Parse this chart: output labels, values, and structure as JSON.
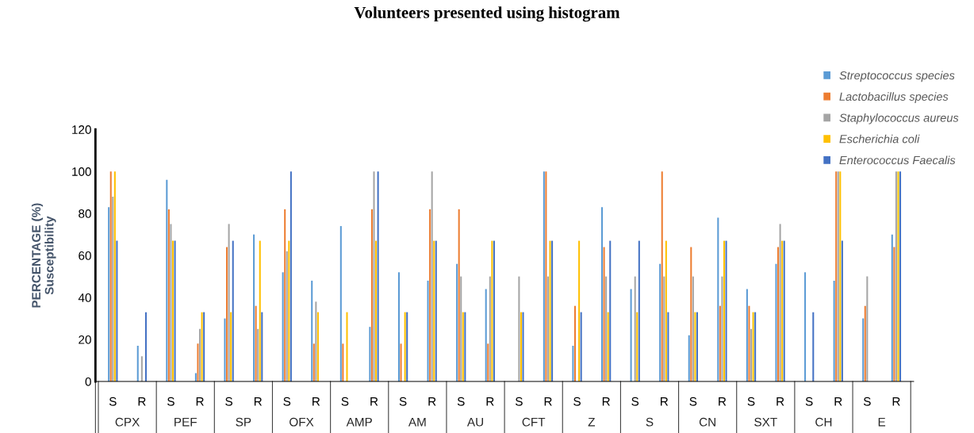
{
  "chart_data": {
    "type": "bar",
    "title": "Volunteers presented using histogram",
    "ylabel": "PERCENTAGE (%)\nSusceptibility",
    "categories": [
      "S",
      "R",
      "S",
      "R",
      "S",
      "R",
      "S",
      "R",
      "S",
      "R",
      "S",
      "R",
      "S",
      "R",
      "S",
      "R",
      "S",
      "R",
      "S",
      "R",
      "S",
      "R",
      "S",
      "R",
      "S",
      "R",
      "S",
      "R"
    ],
    "annotations": [
      "CPX",
      "PEF",
      "SP",
      "OFX",
      "AMP",
      "AM",
      "AU",
      "CFT",
      "Z",
      "S",
      "CN",
      "SXT",
      "CH",
      "E"
    ],
    "series": [
      {
        "name": "Streptococcus species",
        "color": "#5b9bd5",
        "values": [
          83,
          17,
          96,
          4,
          30,
          70,
          52,
          48,
          74,
          26,
          52,
          48,
          56,
          44,
          0,
          100,
          17,
          83,
          44,
          56,
          22,
          78,
          44,
          56,
          52,
          48,
          30,
          70
        ]
      },
      {
        "name": "Lactobacillus species",
        "color": "#ed7d31",
        "values": [
          100,
          0,
          82,
          18,
          64,
          36,
          82,
          18,
          18,
          82,
          18,
          82,
          82,
          18,
          0,
          100,
          36,
          64,
          0,
          100,
          64,
          36,
          36,
          64,
          0,
          100,
          36,
          64
        ]
      },
      {
        "name": "Staphylococcus aureus",
        "color": "#a5a5a5",
        "values": [
          88,
          12,
          75,
          25,
          75,
          25,
          62,
          38,
          0,
          100,
          0,
          100,
          50,
          50,
          50,
          50,
          0,
          50,
          50,
          50,
          50,
          50,
          25,
          75,
          0,
          100,
          50,
          100
        ]
      },
      {
        "name": "Escherichia coli",
        "color": "#ffc000",
        "values": [
          100,
          0,
          67,
          33,
          33,
          67,
          67,
          33,
          33,
          67,
          33,
          67,
          33,
          67,
          33,
          67,
          67,
          33,
          33,
          67,
          33,
          67,
          33,
          67,
          0,
          100,
          0,
          100
        ]
      },
      {
        "name": "Enterococcus Faecalis",
        "color": "#4472c4",
        "values": [
          67,
          33,
          67,
          33,
          67,
          33,
          100,
          0,
          0,
          100,
          33,
          67,
          33,
          67,
          33,
          67,
          33,
          67,
          67,
          33,
          33,
          67,
          33,
          67,
          33,
          67,
          0,
          100
        ]
      }
    ],
    "ylim": [
      0,
      120
    ],
    "yticks": [
      0,
      20,
      40,
      60,
      80,
      100,
      120
    ],
    "grid": false,
    "legend": "top right"
  }
}
